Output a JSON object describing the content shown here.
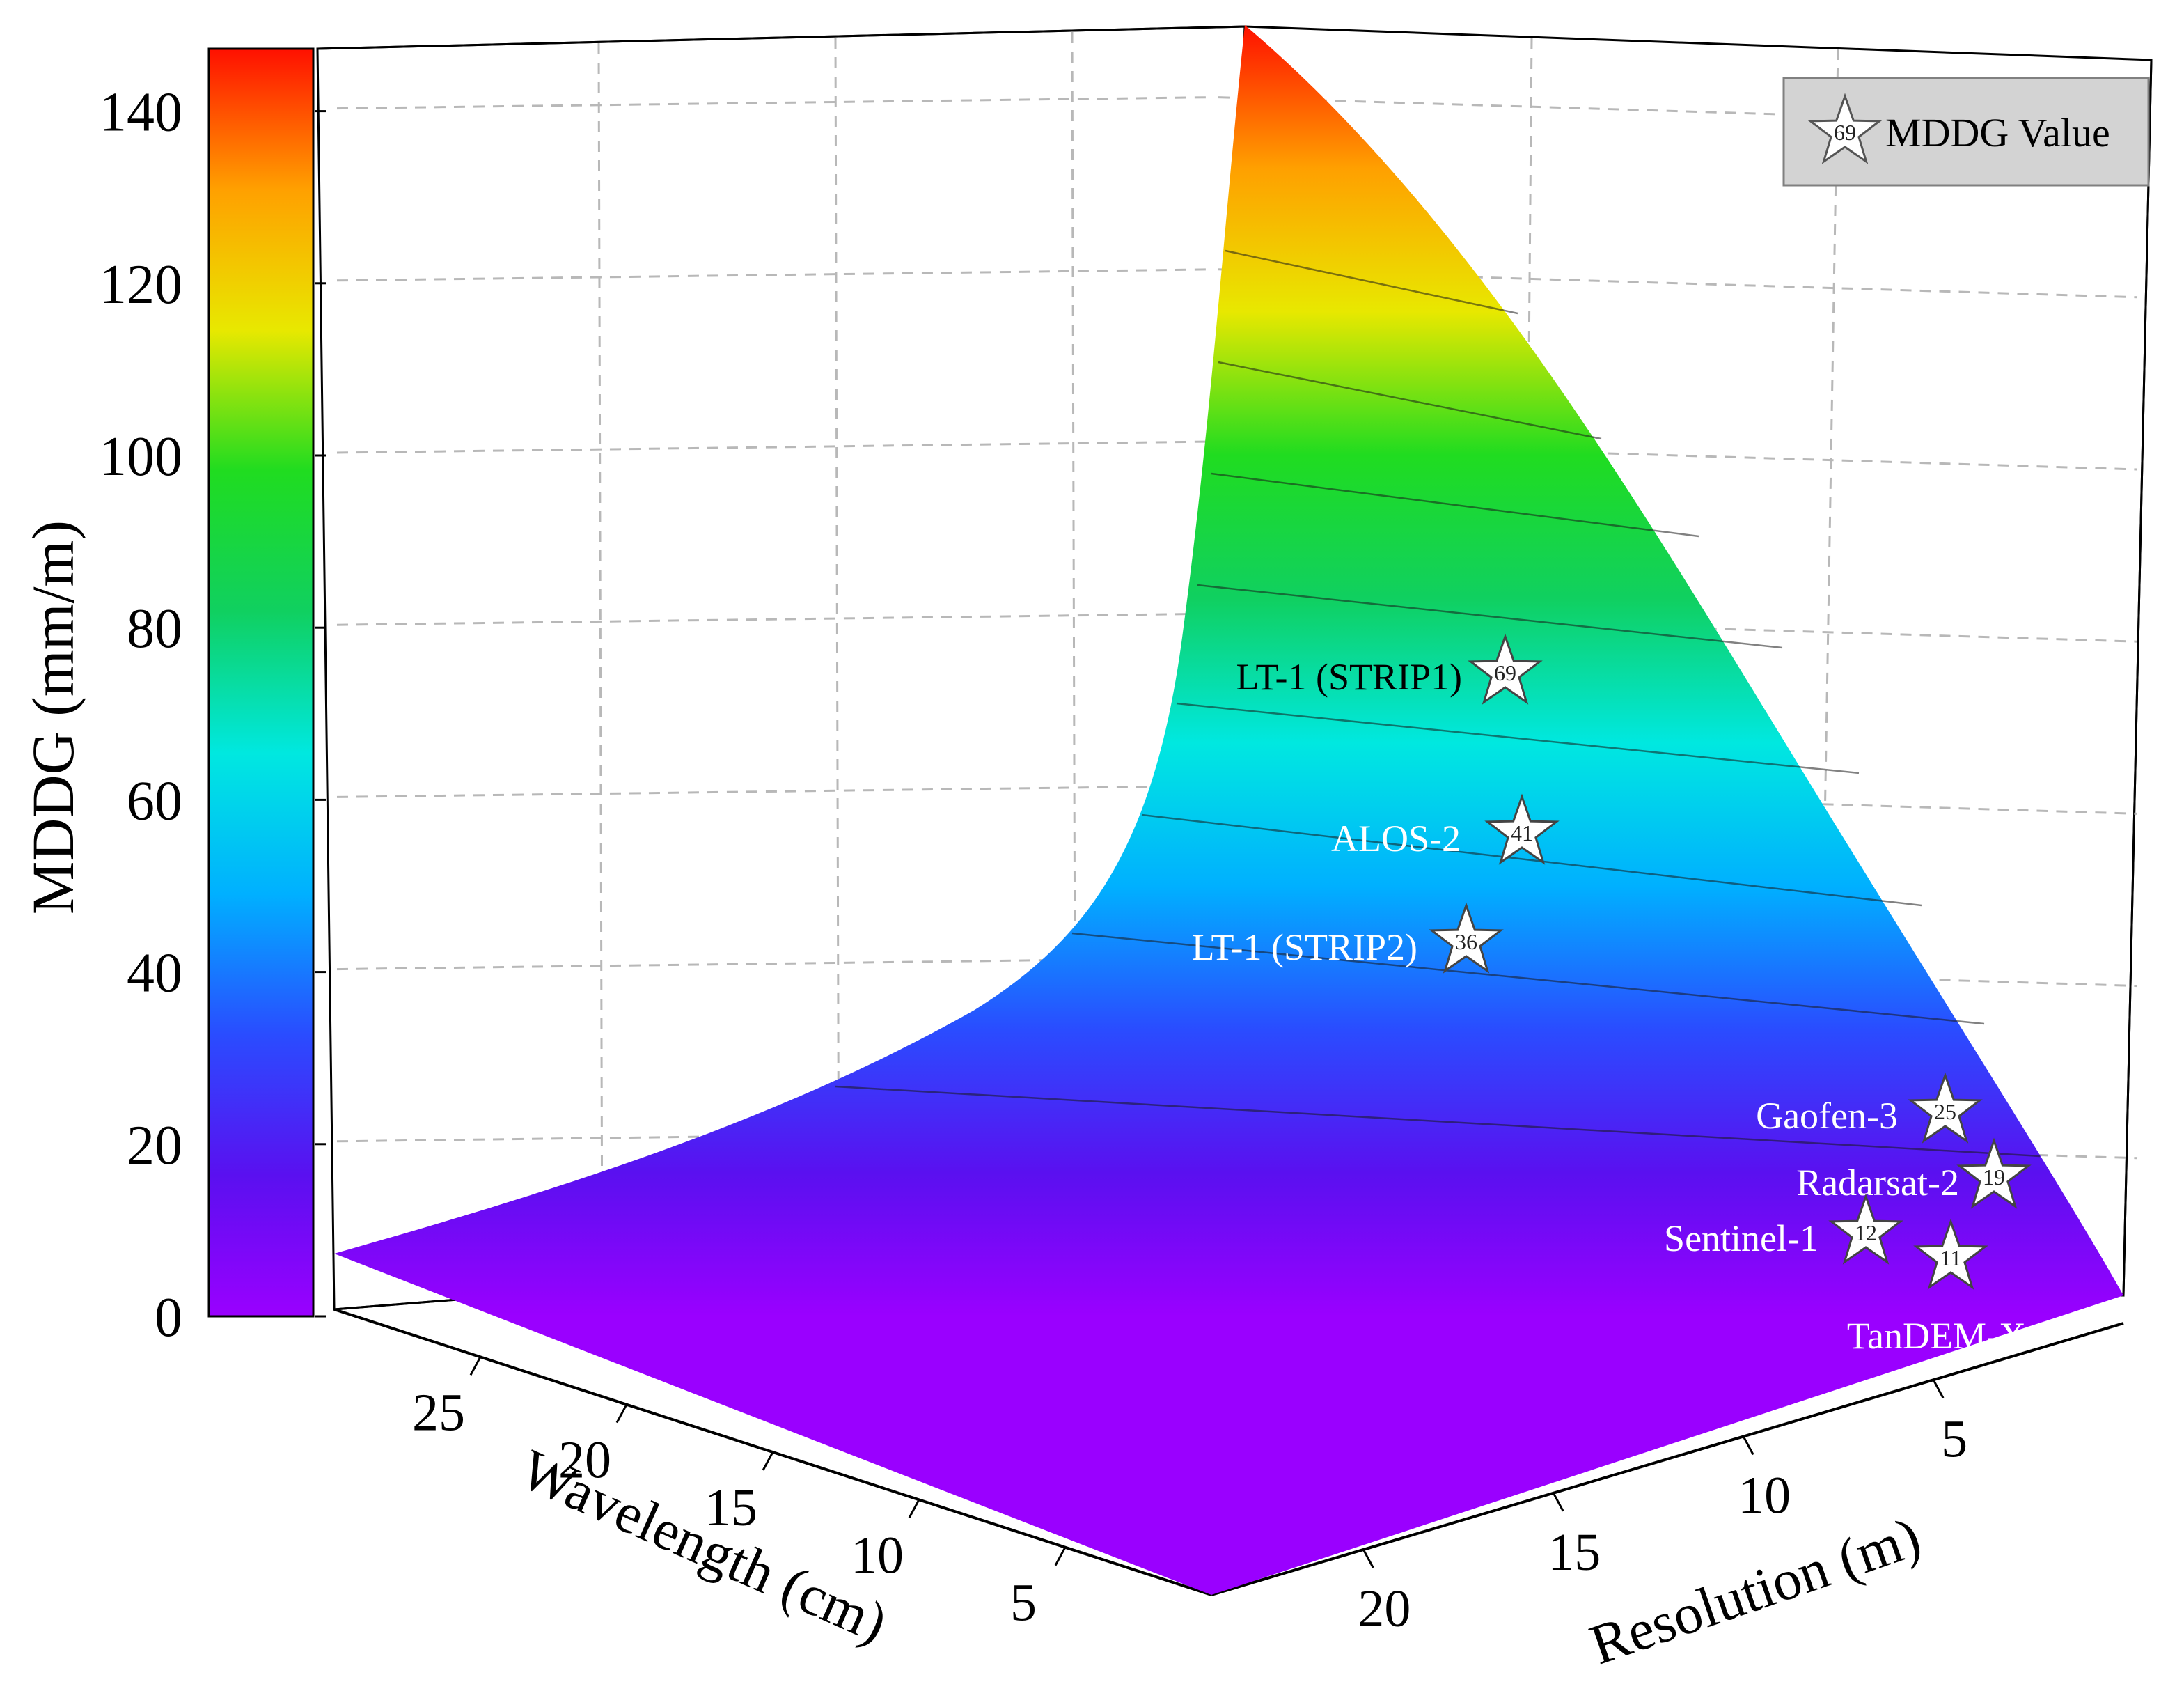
{
  "chart_data": {
    "type": "surface3d",
    "title": "",
    "zlabel": "MDDG (mm/m)",
    "xlabel": "Wavelength (cm)",
    "ylabel": "Resolution (m)",
    "zlim": [
      0,
      150
    ],
    "z_ticks": [
      0,
      20,
      40,
      60,
      80,
      100,
      120,
      140
    ],
    "x_ticks": [
      25,
      20,
      15,
      10,
      5
    ],
    "y_ticks": [
      5,
      10,
      15,
      20
    ],
    "colorbar": {
      "range": [
        0,
        150
      ],
      "colors": [
        "#9a00ff",
        "#5a10f0",
        "#2a4cff",
        "#00b0ff",
        "#00e8e0",
        "#10d060",
        "#20dc20",
        "#e8e800",
        "#ffa000",
        "#ff1000"
      ]
    },
    "legend": {
      "label": "MDDG Value",
      "sample": "69",
      "position": "top-right"
    },
    "points": [
      {
        "name": "LT-1 (STRIP1)",
        "value": "69"
      },
      {
        "name": "ALOS-2",
        "value": "41"
      },
      {
        "name": "LT-1 (STRIP2)",
        "value": "36"
      },
      {
        "name": "Gaofen-3",
        "value": "25"
      },
      {
        "name": "Radarsat-2",
        "value": "19"
      },
      {
        "name": "Sentinel-1",
        "value": "12"
      },
      {
        "name": "TanDEM-X",
        "value": "11"
      }
    ]
  }
}
